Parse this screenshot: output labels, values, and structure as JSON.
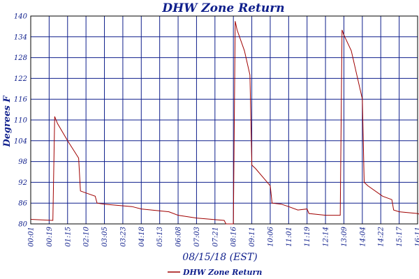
{
  "chart_data": {
    "type": "line",
    "title": "DHW Zone Return",
    "xlabel": "08/15/18 (EST)",
    "ylabel": "Degrees F",
    "ylim": [
      80,
      140
    ],
    "yticks": [
      "80",
      "86",
      "92",
      "98",
      "104",
      "110",
      "116",
      "122",
      "128",
      "134",
      "140"
    ],
    "xticks": [
      "00:01",
      "00:19",
      "01:15",
      "02:10",
      "03:05",
      "03:23",
      "04:18",
      "05:13",
      "06:08",
      "07:03",
      "07:21",
      "08:16",
      "09:11",
      "10:06",
      "11:01",
      "11:19",
      "12:14",
      "13:09",
      "14:04",
      "14:22",
      "15:17",
      "16:11"
    ],
    "grid": true,
    "legend": "bottom-center",
    "colors": {
      "series": "#a00000",
      "grid": "#0f1f8c",
      "text": "#0f1f8c"
    },
    "series": [
      {
        "name": "DHW Zone Return",
        "x": [
          0,
          1.2,
          1.3,
          1.45,
          2.0,
          2.6,
          2.7,
          3.5,
          3.6,
          4.0,
          5.5,
          6.0,
          7.5,
          8.0,
          9.0,
          10.5,
          10.6,
          11.0,
          11.1,
          11.2,
          11.6,
          11.9,
          12.0,
          12.2,
          13.0,
          13.1,
          13.6,
          14.0,
          14.5,
          15.0,
          15.1,
          16.0,
          16.3,
          16.8,
          16.9,
          17.0,
          17.4,
          18.0,
          18.1,
          18.3,
          19.1,
          19.6,
          19.7,
          20.0,
          21.0,
          21.1,
          21.5
        ],
        "y": [
          81.3,
          81.0,
          111.0,
          109.0,
          104.0,
          99.0,
          89.5,
          88.0,
          86.0,
          85.7,
          85.0,
          84.3,
          83.5,
          82.5,
          81.7,
          81.0,
          80.0,
          80.0,
          138.5,
          136.0,
          130.0,
          123.0,
          97.0,
          96.0,
          91.0,
          86.0,
          85.7,
          85.0,
          84.0,
          84.3,
          83.0,
          82.5,
          82.5,
          82.5,
          136.0,
          134.5,
          130.0,
          116.0,
          92.0,
          91.0,
          88.0,
          87.0,
          84.0,
          83.5,
          83.0,
          82.8,
          82.0
        ]
      }
    ]
  }
}
